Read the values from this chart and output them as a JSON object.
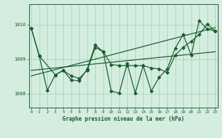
{
  "xlabel": "Graphe pression niveau de la mer (hPa)",
  "xticks": [
    0,
    1,
    2,
    3,
    4,
    5,
    6,
    7,
    8,
    9,
    10,
    11,
    12,
    13,
    14,
    15,
    16,
    17,
    18,
    19,
    20,
    21,
    22,
    23
  ],
  "yticks": [
    1008,
    1009,
    1010
  ],
  "ylim": [
    1007.6,
    1010.6
  ],
  "xlim": [
    -0.3,
    23.3
  ],
  "bg_color": "#d4ede0",
  "line_color": "#1a5c2a",
  "grid_color": "#9ecfb0",
  "trend1_x": [
    0,
    23
  ],
  "trend1_y": [
    1008.52,
    1009.92
  ],
  "trend2_x": [
    0,
    23
  ],
  "trend2_y": [
    1008.68,
    1009.22
  ],
  "series_smooth": [
    1009.9,
    1009.1,
    null,
    1008.55,
    1008.68,
    1008.52,
    1008.45,
    1008.68,
    1009.35,
    1009.22,
    1008.85,
    1008.82,
    1008.82,
    1008.82,
    1008.82,
    1008.75,
    1008.72,
    1008.62,
    1009.12,
    1009.35,
    1009.52,
    1009.72,
    1010.02,
    1009.82
  ],
  "series_volatile": [
    1009.9,
    1009.1,
    1008.1,
    1008.55,
    1008.68,
    1008.4,
    1008.38,
    1008.72,
    1009.42,
    1009.22,
    1008.08,
    1008.02,
    1008.88,
    1008.02,
    1008.82,
    1008.08,
    1008.48,
    1008.72,
    1009.32,
    1009.72,
    1009.12,
    1010.12,
    1009.88,
    1009.82
  ],
  "marker": "D",
  "markersize": 2.5,
  "linewidth": 0.9
}
